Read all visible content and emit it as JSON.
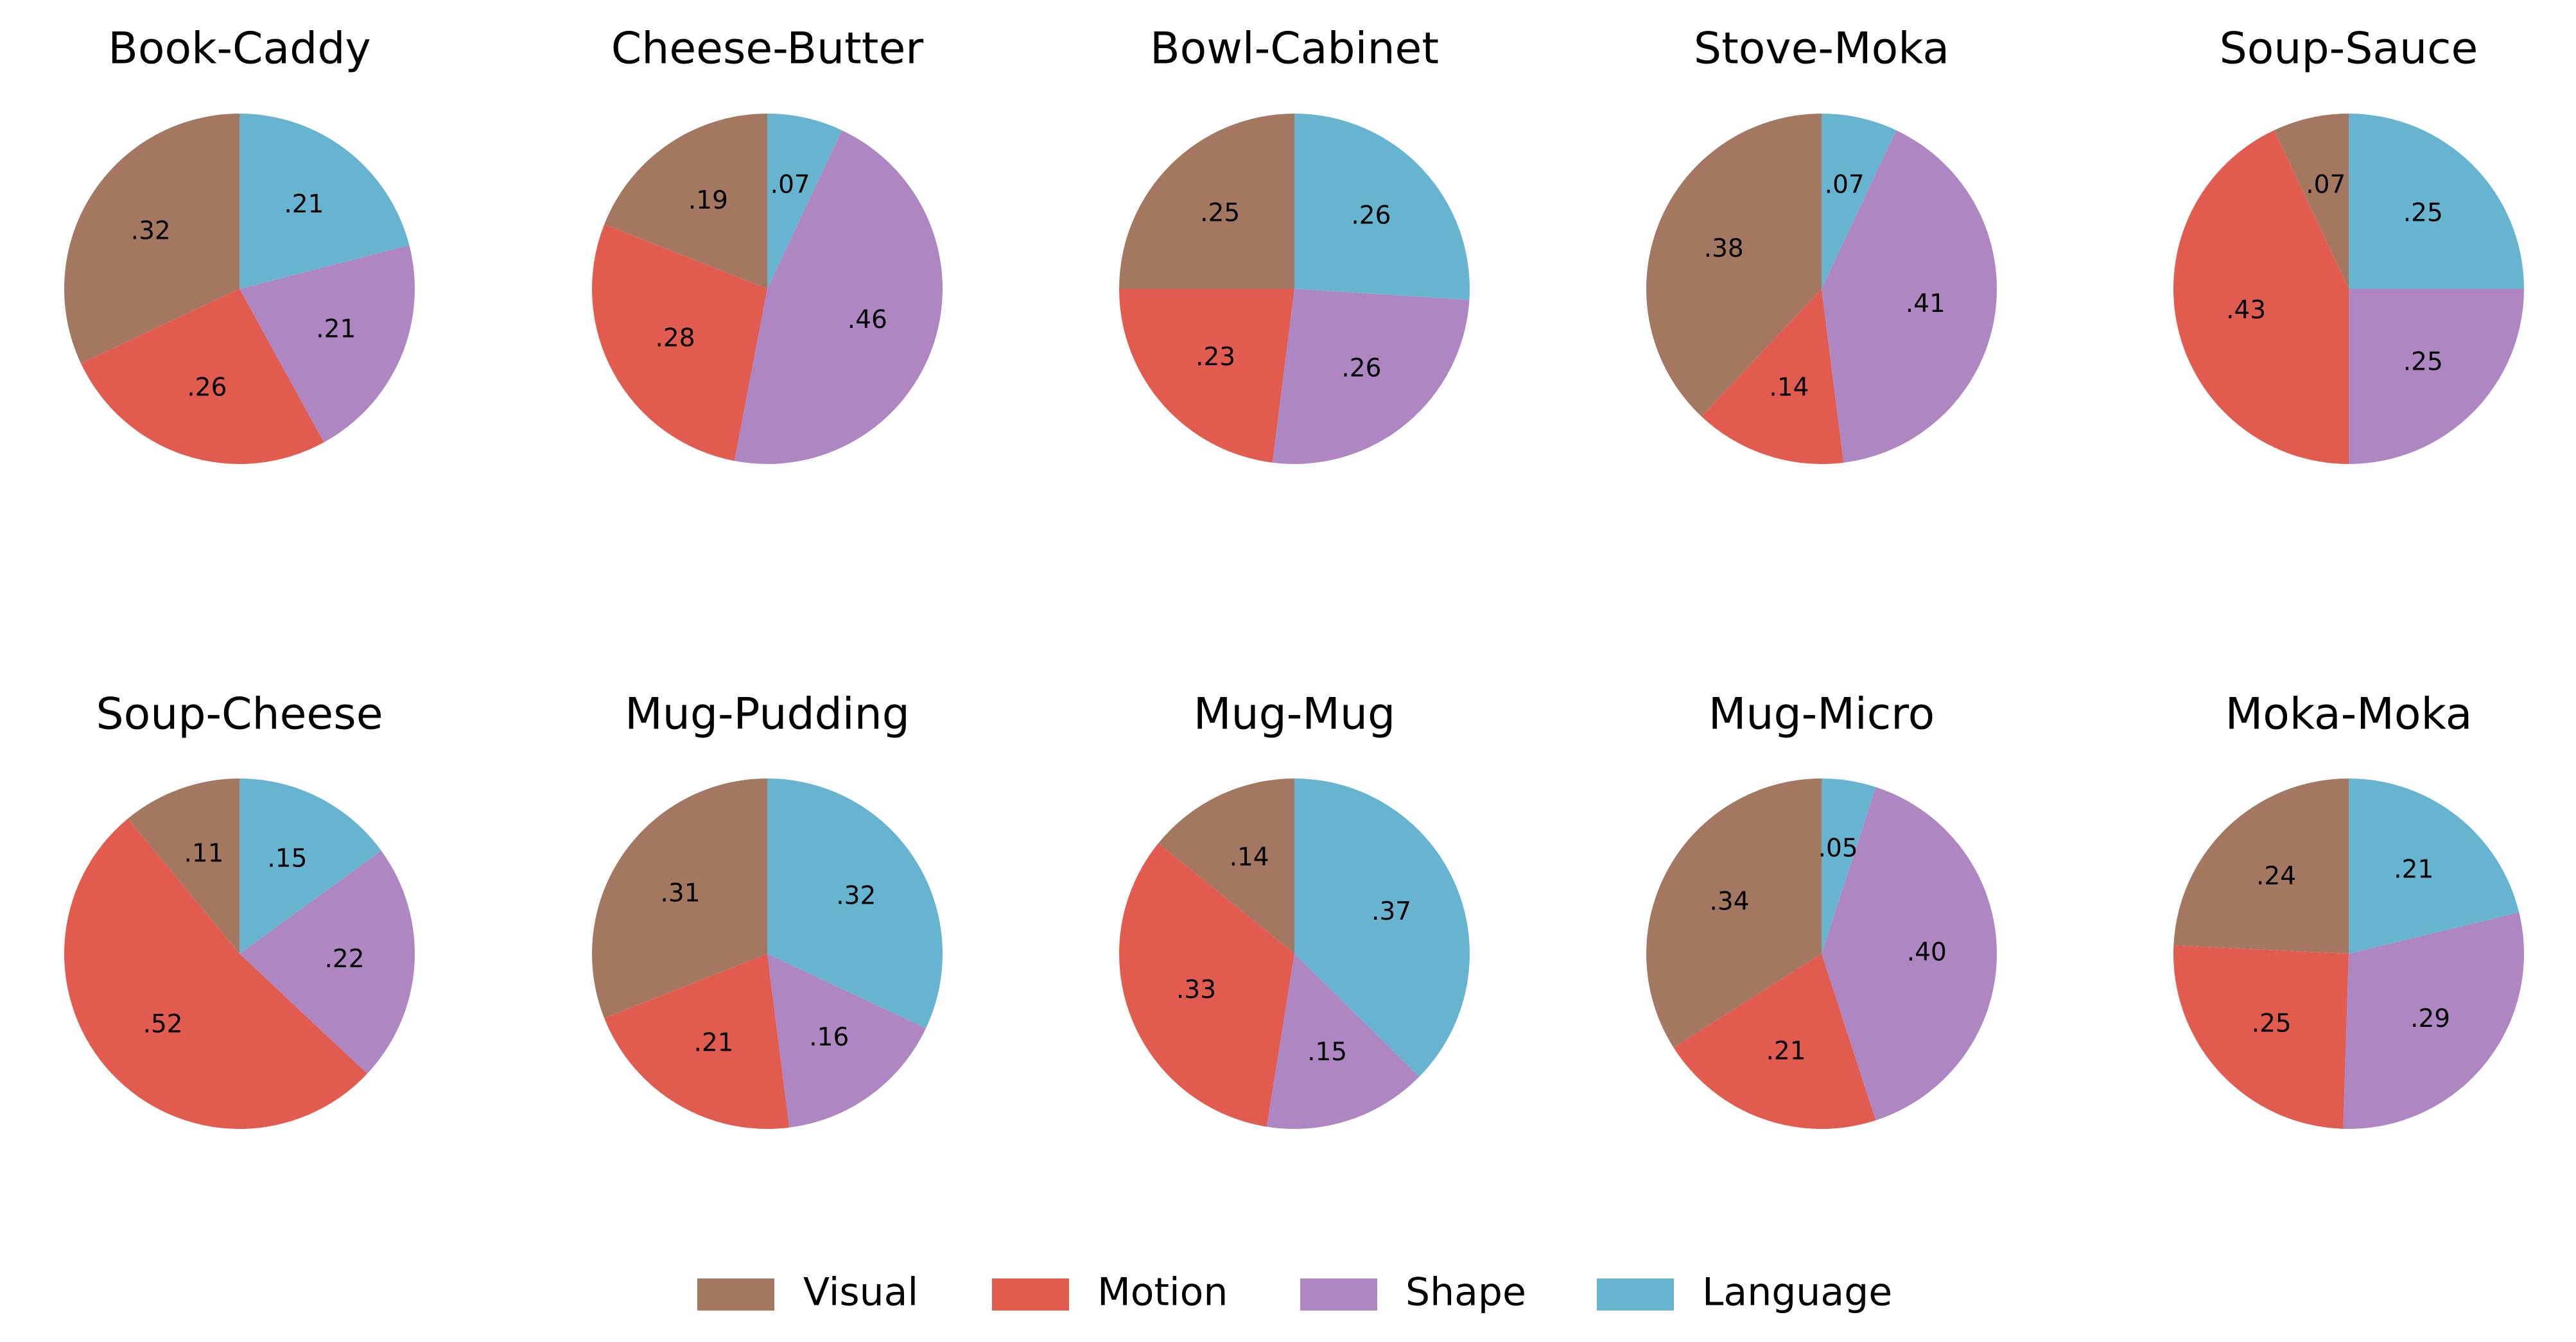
{
  "chart_data": {
    "type": "pie",
    "categories": [
      "Visual",
      "Motion",
      "Shape",
      "Language"
    ],
    "colors": {
      "Visual": "#a47760",
      "Motion": "#e15b4f",
      "Shape": "#ae86c2",
      "Language": "#66b4cf"
    },
    "legend": {
      "placement": "bottom-center"
    },
    "pies": [
      {
        "title": "Book-Caddy",
        "values": [
          0.32,
          0.26,
          0.21,
          0.21
        ],
        "labels": [
          ".32",
          ".26",
          ".21",
          ".21"
        ]
      },
      {
        "title": "Cheese-Butter",
        "values": [
          0.19,
          0.28,
          0.46,
          0.07
        ],
        "labels": [
          ".19",
          ".28",
          ".46",
          ".07"
        ]
      },
      {
        "title": "Bowl-Cabinet",
        "values": [
          0.25,
          0.23,
          0.26,
          0.26
        ],
        "labels": [
          ".25",
          ".23",
          ".26",
          ".26"
        ]
      },
      {
        "title": "Stove-Moka",
        "values": [
          0.38,
          0.14,
          0.41,
          0.07
        ],
        "labels": [
          ".38",
          ".14",
          ".41",
          ".07"
        ]
      },
      {
        "title": "Soup-Sauce",
        "values": [
          0.07,
          0.43,
          0.25,
          0.25
        ],
        "labels": [
          ".07",
          ".43",
          ".25",
          ".25"
        ]
      },
      {
        "title": "Soup-Cheese",
        "values": [
          0.11,
          0.52,
          0.22,
          0.15
        ],
        "labels": [
          ".11",
          ".52",
          ".22",
          ".15"
        ]
      },
      {
        "title": "Mug-Pudding",
        "values": [
          0.31,
          0.21,
          0.16,
          0.32
        ],
        "labels": [
          ".31",
          ".21",
          ".16",
          ".32"
        ]
      },
      {
        "title": "Mug-Mug",
        "values": [
          0.14,
          0.33,
          0.15,
          0.37
        ],
        "labels": [
          ".14",
          ".33",
          ".15",
          ".37"
        ]
      },
      {
        "title": "Mug-Micro",
        "values": [
          0.34,
          0.21,
          0.4,
          0.05
        ],
        "labels": [
          ".34",
          ".21",
          ".40",
          ".05"
        ]
      },
      {
        "title": "Moka-Moka",
        "values": [
          0.24,
          0.25,
          0.29,
          0.21
        ],
        "labels": [
          ".24",
          ".25",
          ".29",
          ".21"
        ]
      }
    ]
  }
}
